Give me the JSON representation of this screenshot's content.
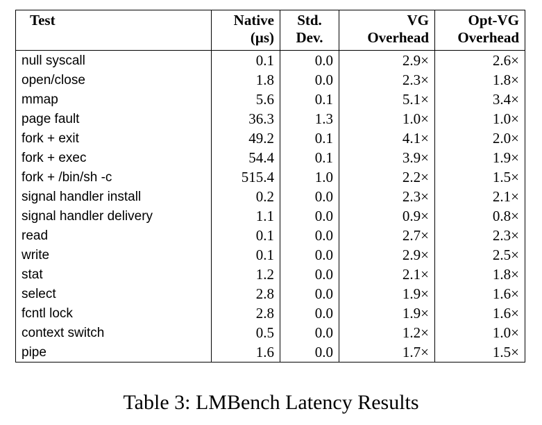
{
  "table": {
    "headers": {
      "test": [
        "Test"
      ],
      "native": [
        "Native",
        "(μs)"
      ],
      "stddev": [
        "Std.",
        "Dev."
      ],
      "vg": [
        "VG",
        "Overhead"
      ],
      "optvg": [
        "Opt-VG",
        "Overhead"
      ]
    },
    "rows": [
      {
        "test": "null syscall",
        "native": "0.1",
        "stddev": "0.0",
        "vg": "2.9×",
        "optvg": "2.6×"
      },
      {
        "test": "open/close",
        "native": "1.8",
        "stddev": "0.0",
        "vg": "2.3×",
        "optvg": "1.8×"
      },
      {
        "test": "mmap",
        "native": "5.6",
        "stddev": "0.1",
        "vg": "5.1×",
        "optvg": "3.4×"
      },
      {
        "test": "page fault",
        "native": "36.3",
        "stddev": "1.3",
        "vg": "1.0×",
        "optvg": "1.0×"
      },
      {
        "test": "fork + exit",
        "native": "49.2",
        "stddev": "0.1",
        "vg": "4.1×",
        "optvg": "2.0×"
      },
      {
        "test": "fork + exec",
        "native": "54.4",
        "stddev": "0.1",
        "vg": "3.9×",
        "optvg": "1.9×"
      },
      {
        "test": "fork + /bin/sh -c",
        "native": "515.4",
        "stddev": "1.0",
        "vg": "2.2×",
        "optvg": "1.5×"
      },
      {
        "test": "signal handler install",
        "native": "0.2",
        "stddev": "0.0",
        "vg": "2.3×",
        "optvg": "2.1×"
      },
      {
        "test": "signal handler delivery",
        "native": "1.1",
        "stddev": "0.0",
        "vg": "0.9×",
        "optvg": "0.8×"
      },
      {
        "test": "read",
        "native": "0.1",
        "stddev": "0.0",
        "vg": "2.7×",
        "optvg": "2.3×"
      },
      {
        "test": "write",
        "native": "0.1",
        "stddev": "0.0",
        "vg": "2.9×",
        "optvg": "2.5×"
      },
      {
        "test": "stat",
        "native": "1.2",
        "stddev": "0.0",
        "vg": "2.1×",
        "optvg": "1.8×"
      },
      {
        "test": "select",
        "native": "2.8",
        "stddev": "0.0",
        "vg": "1.9×",
        "optvg": "1.6×"
      },
      {
        "test": "fcntl lock",
        "native": "2.8",
        "stddev": "0.0",
        "vg": "1.9×",
        "optvg": "1.6×"
      },
      {
        "test": "context switch",
        "native": "0.5",
        "stddev": "0.0",
        "vg": "1.2×",
        "optvg": "1.0×"
      },
      {
        "test": "pipe",
        "native": "1.6",
        "stddev": "0.0",
        "vg": "1.7×",
        "optvg": "1.5×"
      }
    ]
  },
  "caption": "Table 3: LMBench Latency Results"
}
